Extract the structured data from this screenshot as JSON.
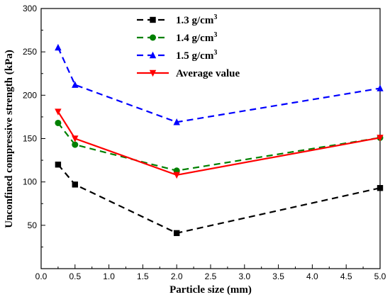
{
  "chart_data": {
    "type": "line",
    "xlabel": "Particle size (mm)",
    "ylabel": "Unconfined compressive strength (kPa)",
    "xlim": [
      0.0,
      5.0
    ],
    "ylim": [
      0,
      300
    ],
    "x_ticks": [
      "0.0",
      "0.5",
      "1.0",
      "1.5",
      "2.0",
      "2.5",
      "3.0",
      "3.5",
      "4.0",
      "4.5",
      "5.0"
    ],
    "y_ticks": [
      "50",
      "100",
      "150",
      "200",
      "250",
      "300"
    ],
    "x": [
      0.25,
      0.5,
      2.0,
      5.0
    ],
    "series": [
      {
        "name_main": "1.3 g/cm",
        "name_sup": "3",
        "values": [
          120,
          97,
          41,
          93
        ],
        "color": "#000000",
        "marker": "square",
        "dash": "dashed"
      },
      {
        "name_main": "1.4 g/cm",
        "name_sup": "3",
        "values": [
          168,
          143,
          113,
          151
        ],
        "color": "#008000",
        "marker": "circle",
        "dash": "dashed"
      },
      {
        "name_main": "1.5 g/cm",
        "name_sup": "3",
        "values": [
          255,
          212,
          169,
          208
        ],
        "color": "#0000ff",
        "marker": "triangle-up",
        "dash": "dashed"
      },
      {
        "name_main": "Average value",
        "name_sup": "",
        "values": [
          181,
          150,
          108,
          151
        ],
        "color": "#ff0000",
        "marker": "triangle-down",
        "dash": "solid"
      }
    ],
    "legend_position": "top-center",
    "grid": false
  }
}
